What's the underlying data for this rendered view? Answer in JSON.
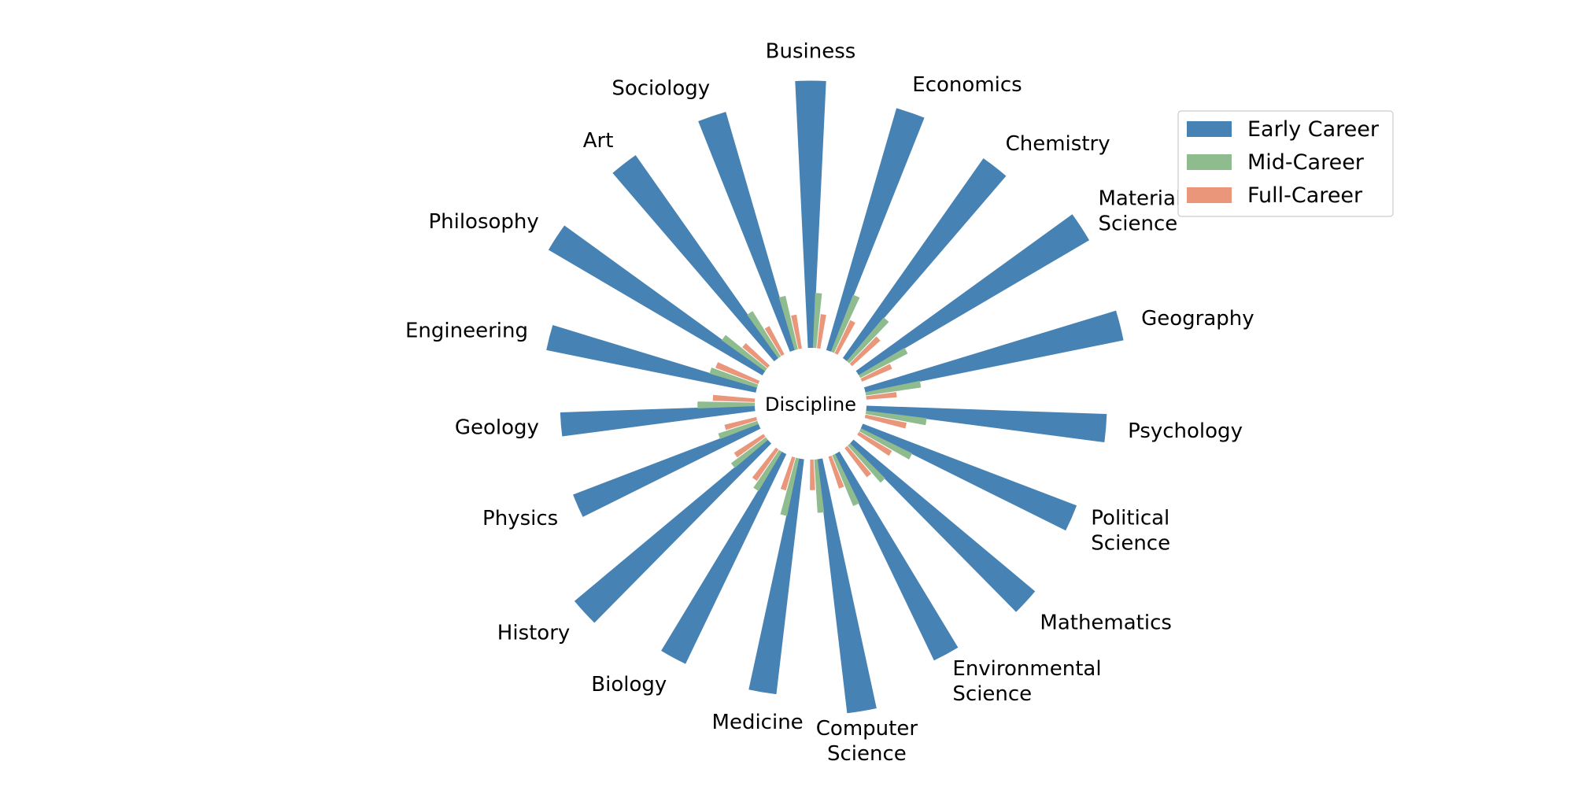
{
  "chart_data": {
    "type": "radial-bar",
    "center_label": "Discipline",
    "categories": [
      "Business",
      "Economics",
      "Chemistry",
      "Materials Science",
      "Geography",
      "Psychology",
      "Political Science",
      "Mathematics",
      "Environmental Science",
      "Computer Science",
      "Medicine",
      "Biology",
      "History",
      "Physics",
      "Geology",
      "Engineering",
      "Philosophy",
      "Art",
      "Sociology"
    ],
    "series": [
      {
        "name": "Early Career",
        "color": "#4682b4",
        "values": [
          350,
          330,
          320,
          350,
          345,
          315,
          300,
          310,
          300,
          335,
          310,
          305,
          330,
          260,
          255,
          280,
          325,
          325,
          325
        ]
      },
      {
        "name": "Mid-Career",
        "color": "#8fbc8f",
        "values": [
          72,
          80,
          75,
          70,
          73,
          80,
          75,
          65,
          72,
          70,
          77,
          60,
          57,
          54,
          75,
          65,
          70,
          70,
          72
        ]
      },
      {
        "name": "Full-Career",
        "color": "#e9967a",
        "values": [
          45,
          48,
          50,
          43,
          40,
          55,
          50,
          48,
          44,
          40,
          45,
          50,
          46,
          43,
          55,
          60,
          43,
          42,
          45
        ]
      }
    ],
    "start_angle_deg": 90,
    "direction": "clockwise",
    "legend_position": "top-right",
    "grid": false
  }
}
